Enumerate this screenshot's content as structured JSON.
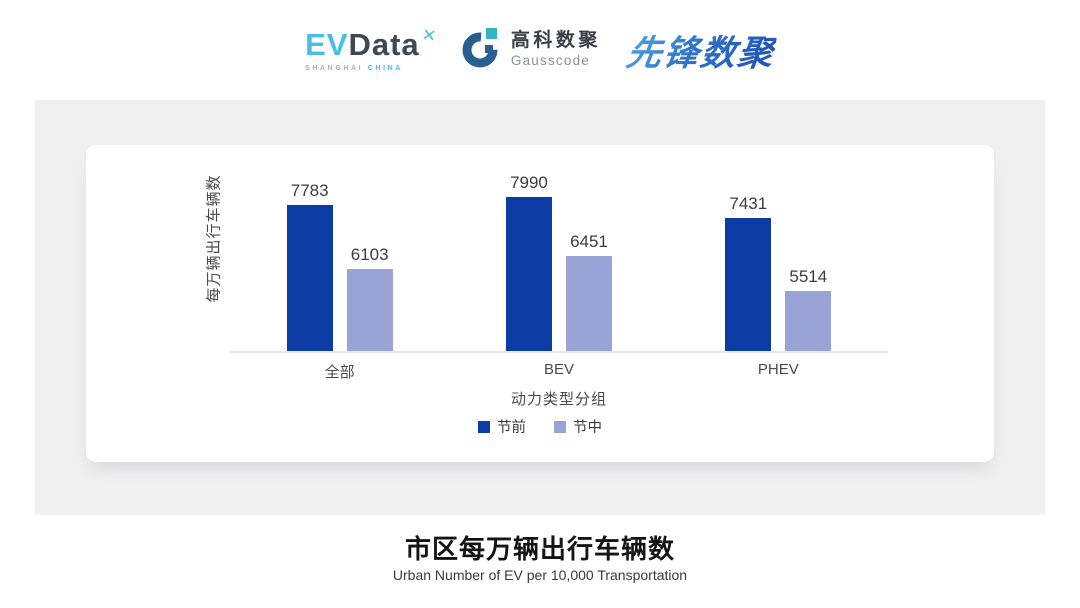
{
  "header": {
    "evdata": {
      "ev": "EV",
      "data": "Data",
      "mark": "✕",
      "sub_left": "SHANGHAI",
      "sub_right": "CHINA"
    },
    "gausscode": {
      "cn": "高科数聚",
      "en": "Gausscode"
    },
    "xianfeng": {
      "text": "先锋数聚"
    }
  },
  "chart_data": {
    "type": "bar",
    "title": "市区每万辆出行车辆数",
    "subtitle": "Urban Number of EV per 10,000 Transportation",
    "categories": [
      "全部",
      "BEV",
      "PHEV"
    ],
    "series": [
      {
        "name": "节前",
        "color": "#0B3CA3",
        "values": [
          7783,
          7990,
          7431
        ]
      },
      {
        "name": "节中",
        "color": "#99A3D6",
        "values": [
          6103,
          6451,
          5514
        ]
      }
    ],
    "xlabel": "动力类型分组",
    "ylabel": "每万辆出行车辆数",
    "ylim": [
      3950,
      8250
    ],
    "grid": false,
    "legend_position": "bottom",
    "bar_value_labels": true
  },
  "colors": {
    "panel_bg": "#F0F0F1",
    "card_bg": "#FFFFFF",
    "axis_line": "#E9E9EB",
    "series_dark": "#0B3CA3",
    "series_light": "#99A3D6",
    "evdata_blue": "#45BEE9",
    "evdata_dark": "#3E4953",
    "gausscode_navy": "#27608F",
    "gausscode_teal": "#35B3C5",
    "xianfeng_blue": "#2F74CC"
  }
}
